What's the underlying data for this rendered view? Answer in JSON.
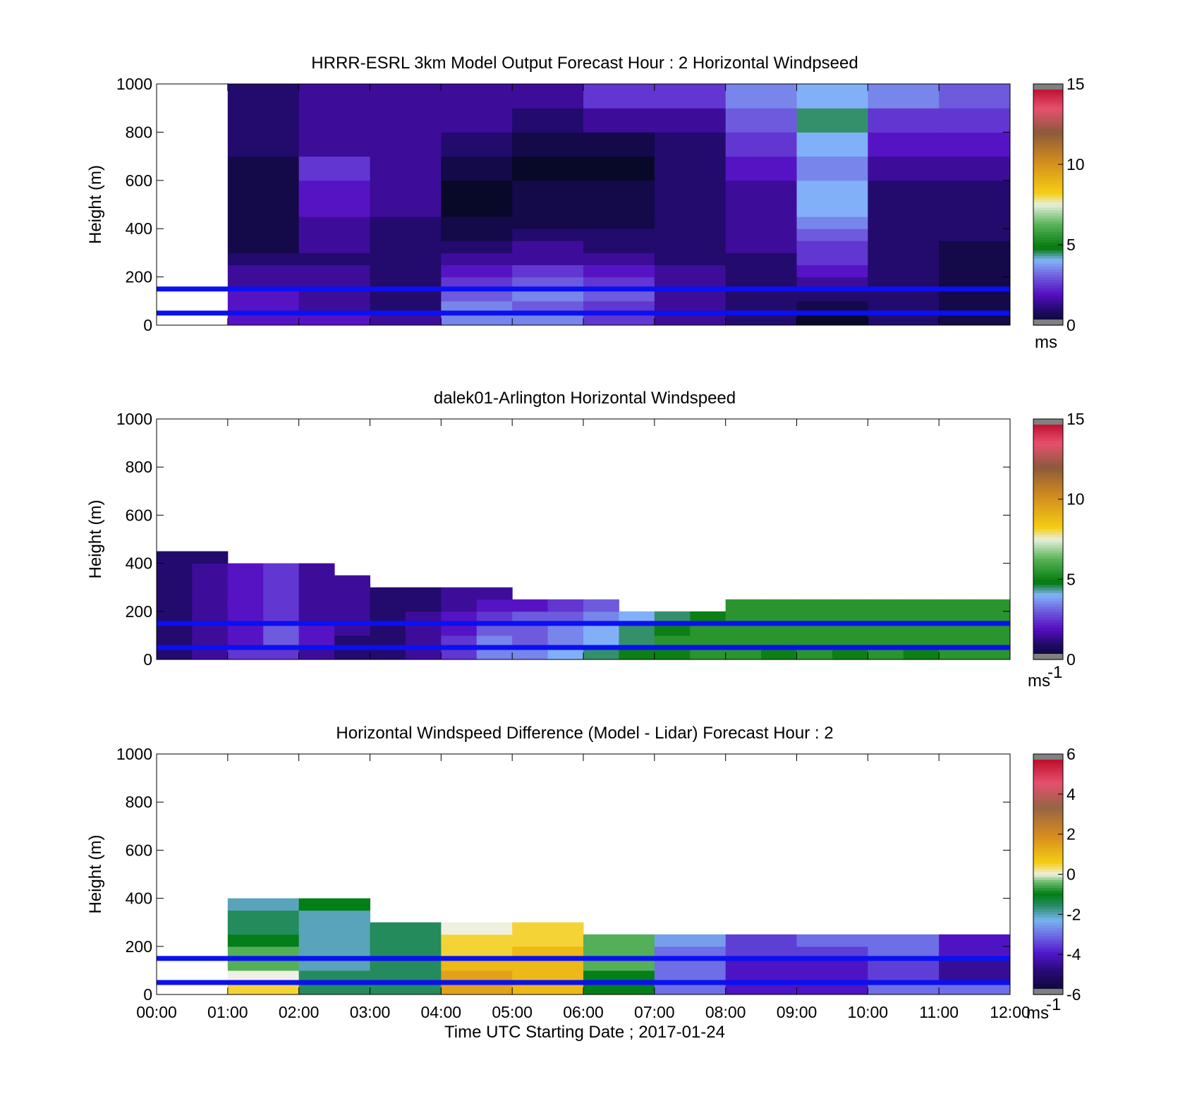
{
  "panels": [
    {
      "title": "HRRR-ESRL 3km Model Output   Forecast Hour : 2 Horizontal Windpseed",
      "ylabel": "Height (m)",
      "yticks": [
        "0",
        "200",
        "400",
        "600",
        "800",
        "1000"
      ],
      "show_xticklabels": false,
      "colorbar": {
        "ticks": [
          "0",
          "5",
          "10",
          "15"
        ],
        "unit": "ms",
        "unit_sup": ""
      }
    },
    {
      "title": "dalek01-Arlington  Horizontal Windspeed",
      "ylabel": "Height (m)",
      "yticks": [
        "0",
        "200",
        "400",
        "600",
        "800",
        "1000"
      ],
      "show_xticklabels": false,
      "colorbar": {
        "ticks": [
          "0",
          "5",
          "10",
          "15"
        ],
        "unit": "ms",
        "unit_sup": "-1"
      }
    },
    {
      "title": "Horizontal Windspeed Difference (Model - Lidar) Forecast Hour : 2",
      "ylabel": "Height (m)",
      "yticks": [
        "0",
        "200",
        "400",
        "600",
        "800",
        "1000"
      ],
      "show_xticklabels": true,
      "colorbar": {
        "ticks": [
          "-6",
          "-4",
          "-2",
          "0",
          "2",
          "4",
          "6"
        ],
        "unit": "ms",
        "unit_sup": "-1"
      }
    }
  ],
  "xaxis": {
    "label": "Time UTC  Starting Date ; 2017-01-24",
    "ticks": [
      "00:00",
      "01:00",
      "02:00",
      "03:00",
      "04:00",
      "05:00",
      "06:00",
      "07:00",
      "08:00",
      "09:00",
      "10:00",
      "11:00",
      "12:00"
    ]
  },
  "chart_data": [
    {
      "type": "heatmap",
      "title": "HRRR-ESRL 3km Model Output   Forecast Hour : 2 Horizontal Windpseed",
      "ylabel": "Height (m)",
      "x_range_hours": [
        0,
        12
      ],
      "ylim": [
        0,
        1000
      ],
      "clim": [
        0,
        15
      ],
      "colorbar_unit": "ms",
      "reference_lines_m": [
        50,
        150
      ],
      "reference_line_color": "#0a10f0",
      "hours": [
        1,
        2,
        3,
        4,
        5,
        6,
        7,
        8,
        9,
        10,
        11
      ],
      "levels_m": [
        25,
        75,
        125,
        175,
        225,
        275,
        325,
        375,
        425,
        475,
        525,
        575,
        625,
        675,
        725,
        775,
        825,
        875,
        925,
        975
      ],
      "values_ms": [
        [
          2.0,
          2.0,
          1.5,
          3.5,
          3.5,
          2.5,
          1.5,
          1.0,
          0.0,
          1.0,
          0.5
        ],
        [
          2.0,
          1.5,
          1.0,
          3.5,
          3.0,
          2.5,
          1.5,
          1.0,
          0.5,
          1.0,
          0.5
        ],
        [
          2.0,
          1.5,
          1.0,
          3.0,
          3.5,
          3.0,
          1.5,
          1.0,
          1.0,
          1.0,
          0.5
        ],
        [
          1.5,
          1.5,
          1.0,
          2.5,
          3.0,
          2.5,
          1.5,
          1.0,
          1.5,
          1.0,
          0.5
        ],
        [
          1.5,
          1.5,
          1.0,
          2.0,
          2.5,
          2.0,
          1.5,
          1.0,
          2.0,
          1.0,
          0.5
        ],
        [
          1.0,
          1.0,
          1.0,
          1.5,
          1.5,
          1.5,
          1.0,
          1.0,
          2.5,
          1.0,
          0.5
        ],
        [
          0.5,
          1.5,
          1.0,
          1.0,
          1.5,
          1.0,
          1.0,
          1.5,
          2.5,
          1.0,
          0.5
        ],
        [
          0.5,
          1.5,
          1.0,
          0.5,
          1.0,
          1.0,
          1.0,
          1.5,
          3.0,
          1.0,
          1.0
        ],
        [
          0.5,
          1.5,
          1.0,
          0.5,
          0.5,
          0.5,
          1.0,
          1.5,
          3.5,
          1.0,
          1.0
        ],
        [
          0.5,
          2.0,
          1.5,
          0.0,
          0.5,
          0.5,
          1.0,
          1.5,
          4.0,
          1.0,
          1.0
        ],
        [
          0.5,
          2.0,
          1.5,
          0.0,
          0.5,
          0.5,
          1.0,
          1.5,
          4.0,
          1.0,
          1.0
        ],
        [
          0.5,
          2.0,
          1.5,
          0.0,
          0.5,
          0.5,
          1.0,
          1.5,
          4.0,
          1.0,
          1.0
        ],
        [
          0.5,
          2.5,
          1.5,
          0.5,
          0.0,
          0.0,
          1.0,
          2.0,
          3.5,
          1.5,
          1.5
        ],
        [
          0.5,
          2.5,
          1.5,
          0.5,
          0.0,
          0.0,
          1.0,
          2.0,
          3.5,
          1.5,
          1.5
        ],
        [
          1.0,
          1.5,
          1.5,
          1.0,
          0.5,
          0.5,
          1.0,
          2.5,
          4.0,
          2.0,
          2.0
        ],
        [
          1.0,
          1.5,
          1.5,
          1.0,
          0.5,
          0.5,
          1.0,
          2.5,
          4.0,
          2.0,
          2.0
        ],
        [
          1.0,
          1.5,
          1.5,
          1.5,
          1.0,
          1.5,
          1.5,
          3.0,
          4.5,
          2.5,
          2.5
        ],
        [
          1.0,
          1.5,
          1.5,
          1.5,
          1.0,
          1.5,
          1.5,
          3.0,
          4.5,
          2.5,
          2.5
        ],
        [
          1.0,
          1.5,
          1.5,
          1.5,
          1.5,
          2.5,
          2.5,
          3.5,
          4.0,
          3.5,
          3.0
        ],
        [
          1.0,
          1.5,
          1.5,
          1.5,
          1.5,
          2.5,
          2.5,
          3.5,
          4.0,
          3.5,
          3.0
        ]
      ]
    },
    {
      "type": "heatmap",
      "title": "dalek01-Arlington  Horizontal Windspeed",
      "ylabel": "Height (m)",
      "x_range_hours": [
        0,
        12
      ],
      "ylim": [
        0,
        1000
      ],
      "clim": [
        0,
        15
      ],
      "colorbar_unit": "ms-1",
      "reference_lines_m": [
        50,
        150
      ],
      "reference_line_color": "#0a10f0",
      "hours": [
        0,
        0.5,
        1,
        1.5,
        2,
        2.5,
        3,
        3.5,
        4,
        4.5,
        5,
        5.5,
        6,
        6.5,
        7,
        7.5,
        8,
        8.5,
        9,
        9.5,
        10,
        10.5,
        11,
        11.5
      ],
      "levels_m": [
        25,
        75,
        125,
        175,
        225,
        275,
        325,
        375,
        425
      ],
      "values_ms": [
        [
          1.0,
          1.5,
          2.5,
          2.5,
          1.5,
          1.0,
          1.0,
          1.5,
          2.5,
          3.5,
          3.5,
          4.0,
          4.5,
          5.0,
          5.0,
          5.5,
          5.5,
          5.0,
          5.5,
          5.0,
          5.5,
          5.0,
          5.5,
          5.5
        ],
        [
          1.0,
          1.5,
          2.0,
          3.0,
          2.0,
          1.0,
          1.0,
          1.5,
          2.5,
          3.5,
          3.0,
          3.5,
          4.0,
          4.5,
          5.5,
          5.5,
          5.5,
          5.5,
          5.5,
          5.5,
          5.5,
          5.5,
          5.5,
          5.5
        ],
        [
          1.0,
          1.5,
          2.0,
          3.0,
          2.0,
          1.5,
          1.0,
          1.5,
          2.0,
          3.0,
          3.0,
          3.5,
          4.0,
          4.5,
          5.0,
          5.5,
          5.5,
          5.5,
          5.5,
          5.5,
          5.5,
          5.5,
          5.5,
          5.5
        ],
        [
          1.0,
          1.5,
          2.0,
          2.5,
          1.5,
          1.5,
          1.0,
          1.5,
          2.0,
          2.5,
          3.0,
          3.0,
          3.5,
          4.0,
          4.5,
          5.0,
          5.5,
          5.5,
          5.5,
          5.5,
          5.5,
          5.5,
          5.5,
          5.5
        ],
        [
          1.0,
          1.5,
          2.0,
          2.5,
          1.5,
          1.5,
          1.0,
          1.0,
          1.5,
          2.0,
          2.0,
          2.5,
          3.0,
          null,
          null,
          null,
          5.5,
          5.5,
          5.5,
          5.5,
          5.5,
          5.5,
          5.5,
          5.5
        ],
        [
          1.0,
          1.5,
          2.0,
          2.5,
          1.5,
          1.5,
          1.0,
          1.0,
          1.5,
          1.5,
          null,
          null,
          null,
          null,
          null,
          null,
          null,
          null,
          null,
          null,
          null,
          null,
          null,
          null
        ],
        [
          1.0,
          1.5,
          2.0,
          2.5,
          1.5,
          1.5,
          null,
          null,
          null,
          null,
          null,
          null,
          null,
          null,
          null,
          null,
          null,
          null,
          null,
          null,
          null,
          null,
          null,
          null
        ],
        [
          1.0,
          1.5,
          2.0,
          2.5,
          1.5,
          null,
          null,
          null,
          null,
          null,
          null,
          null,
          null,
          null,
          null,
          null,
          null,
          null,
          null,
          null,
          null,
          null,
          null,
          null
        ],
        [
          1.0,
          1.0,
          null,
          null,
          null,
          null,
          null,
          null,
          null,
          null,
          null,
          null,
          null,
          null,
          null,
          null,
          null,
          null,
          null,
          null,
          null,
          null,
          null,
          null
        ]
      ]
    },
    {
      "type": "heatmap",
      "title": "Horizontal Windspeed Difference (Model - Lidar) Forecast Hour : 2",
      "xlabel": "Time UTC  Starting Date ; 2017-01-24",
      "ylabel": "Height (m)",
      "x_range_hours": [
        0,
        12
      ],
      "ylim": [
        0,
        1000
      ],
      "clim": [
        -6,
        6
      ],
      "colorbar_unit": "ms-1",
      "reference_lines_m": [
        50,
        150
      ],
      "reference_line_color": "#0a10f0",
      "hours": [
        1,
        2,
        3,
        4,
        5,
        6,
        7,
        8,
        9,
        10,
        11
      ],
      "levels_m": [
        25,
        75,
        125,
        175,
        225,
        275,
        325,
        375
      ],
      "values_ms": [
        [
          0.5,
          -1.5,
          -1.5,
          1.5,
          1.0,
          -1.0,
          -3.0,
          -4.0,
          -4.0,
          -3.0,
          -3.0
        ],
        [
          0.0,
          -1.5,
          -1.5,
          1.5,
          1.0,
          -1.0,
          -3.0,
          -4.0,
          -4.0,
          -3.5,
          -4.5
        ],
        [
          -0.5,
          -2.0,
          -1.5,
          1.0,
          1.0,
          -0.5,
          -3.0,
          -4.0,
          -4.0,
          -3.5,
          -4.5
        ],
        [
          -0.5,
          -2.0,
          -1.5,
          0.5,
          1.0,
          -0.5,
          -3.0,
          -3.5,
          -3.5,
          -3.0,
          -4.0
        ],
        [
          -1.0,
          -2.0,
          -1.5,
          0.5,
          0.5,
          -0.5,
          -2.5,
          -3.5,
          -3.0,
          -3.0,
          -4.0
        ],
        [
          -1.5,
          -2.0,
          -1.5,
          0.0,
          0.5,
          null,
          null,
          null,
          null,
          null,
          null
        ],
        [
          -1.5,
          -2.0,
          null,
          null,
          null,
          null,
          null,
          null,
          null,
          null,
          null
        ],
        [
          -2.0,
          -1.0,
          null,
          null,
          null,
          null,
          null,
          null,
          null,
          null,
          null
        ]
      ]
    }
  ]
}
